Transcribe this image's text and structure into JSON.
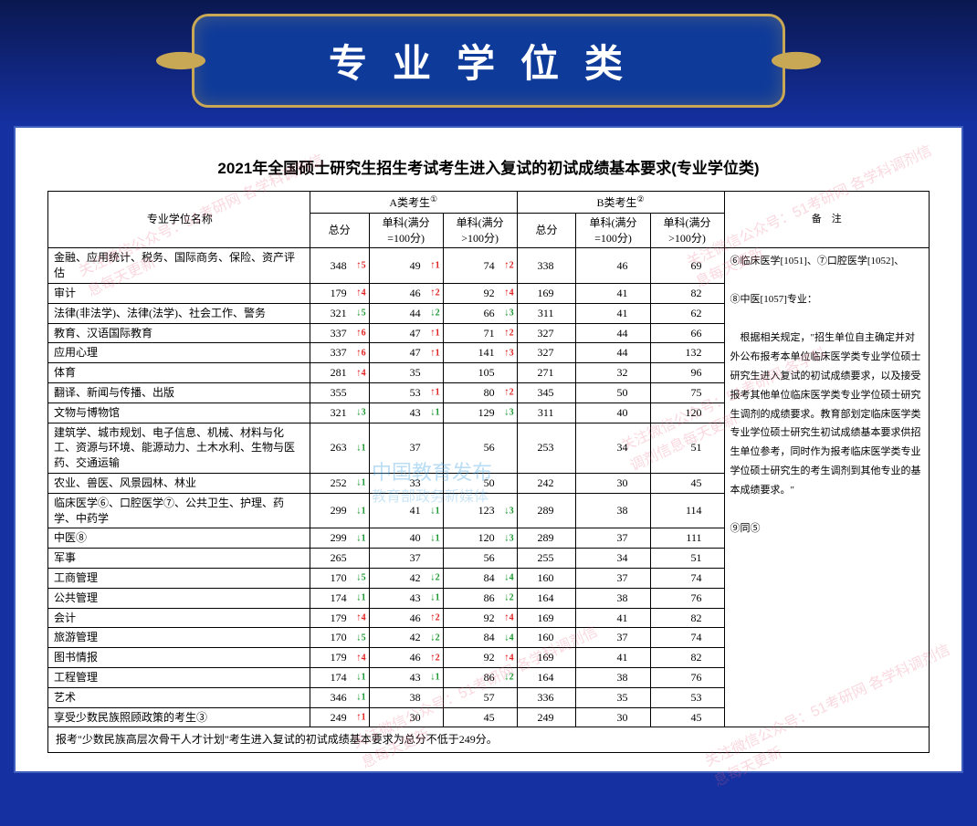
{
  "banner": {
    "title": "专业学位类"
  },
  "table_title": "2021年全国硕士研究生招生考试考生进入复试的初试成绩基本要求(专业学位类)",
  "headers": {
    "name": "专业学位名称",
    "groupA": "A类考生",
    "groupA_sup": "①",
    "groupB": "B类考生",
    "groupB_sup": "②",
    "total": "总分",
    "sub100": "单科(满分=100分)",
    "subgt100": "单科(满分>100分)",
    "note": "备　注"
  },
  "rows": [
    {
      "name": "金融、应用统计、税务、国际商务、保险、资产评估",
      "a": [
        348,
        49,
        74
      ],
      "ad": [
        "+5",
        "+1",
        "+2"
      ],
      "b": [
        338,
        46,
        69
      ],
      "bd": [
        "",
        "",
        ""
      ]
    },
    {
      "name": "审计",
      "a": [
        179,
        46,
        92
      ],
      "ad": [
        "+4",
        "+2",
        "+4"
      ],
      "b": [
        169,
        41,
        82
      ],
      "bd": [
        "",
        "",
        ""
      ]
    },
    {
      "name": "法律(非法学)、法律(法学)、社会工作、警务",
      "a": [
        321,
        44,
        66
      ],
      "ad": [
        "-5",
        "-2",
        "-3"
      ],
      "b": [
        311,
        41,
        62
      ],
      "bd": [
        "",
        "",
        ""
      ]
    },
    {
      "name": "教育、汉语国际教育",
      "a": [
        337,
        47,
        71
      ],
      "ad": [
        "+6",
        "+1",
        "+2"
      ],
      "b": [
        327,
        44,
        66
      ],
      "bd": [
        "",
        "",
        ""
      ]
    },
    {
      "name": "应用心理",
      "a": [
        337,
        47,
        141
      ],
      "ad": [
        "+6",
        "+1",
        "+3"
      ],
      "b": [
        327,
        44,
        132
      ],
      "bd": [
        "",
        "",
        ""
      ]
    },
    {
      "name": "体育",
      "a": [
        281,
        35,
        105
      ],
      "ad": [
        "+4",
        "",
        ""
      ],
      "b": [
        271,
        32,
        96
      ],
      "bd": [
        "",
        "",
        ""
      ]
    },
    {
      "name": "翻译、新闻与传播、出版",
      "a": [
        355,
        53,
        80
      ],
      "ad": [
        "",
        "+1",
        "+2"
      ],
      "b": [
        345,
        50,
        75
      ],
      "bd": [
        "",
        "",
        ""
      ]
    },
    {
      "name": "文物与博物馆",
      "a": [
        321,
        43,
        129
      ],
      "ad": [
        "-3",
        "-1",
        "-3"
      ],
      "b": [
        311,
        40,
        120
      ],
      "bd": [
        "",
        "",
        ""
      ]
    },
    {
      "name": "建筑学、城市规划、电子信息、机械、材料与化工、资源与环境、能源动力、土木水利、生物与医药、交通运输",
      "a": [
        263,
        37,
        56
      ],
      "ad": [
        "-1",
        "",
        ""
      ],
      "b": [
        253,
        34,
        51
      ],
      "bd": [
        "",
        "",
        ""
      ]
    },
    {
      "name": "农业、兽医、风景园林、林业",
      "a": [
        252,
        33,
        50
      ],
      "ad": [
        "-1",
        "",
        ""
      ],
      "b": [
        242,
        30,
        45
      ],
      "bd": [
        "",
        "",
        ""
      ]
    },
    {
      "name": "临床医学⑥、口腔医学⑦、公共卫生、护理、药学、中药学",
      "a": [
        299,
        41,
        123
      ],
      "ad": [
        "-1",
        "-1",
        "-3"
      ],
      "b": [
        289,
        38,
        114
      ],
      "bd": [
        "",
        "",
        ""
      ]
    },
    {
      "name": "中医⑧",
      "a": [
        299,
        40,
        120
      ],
      "ad": [
        "-1",
        "-1",
        "-3"
      ],
      "b": [
        289,
        37,
        111
      ],
      "bd": [
        "",
        "",
        ""
      ]
    },
    {
      "name": "军事",
      "a": [
        265,
        37,
        56
      ],
      "ad": [
        "",
        "",
        ""
      ],
      "b": [
        255,
        34,
        51
      ],
      "bd": [
        "",
        "",
        ""
      ]
    },
    {
      "name": "工商管理",
      "a": [
        170,
        42,
        84
      ],
      "ad": [
        "-5",
        "-2",
        "-4"
      ],
      "b": [
        160,
        37,
        74
      ],
      "bd": [
        "",
        "",
        ""
      ]
    },
    {
      "name": "公共管理",
      "a": [
        174,
        43,
        86
      ],
      "ad": [
        "-1",
        "-1",
        "-2"
      ],
      "b": [
        164,
        38,
        76
      ],
      "bd": [
        "",
        "",
        ""
      ]
    },
    {
      "name": "会计",
      "a": [
        179,
        46,
        92
      ],
      "ad": [
        "+4",
        "+2",
        "+4"
      ],
      "b": [
        169,
        41,
        82
      ],
      "bd": [
        "",
        "",
        ""
      ]
    },
    {
      "name": "旅游管理",
      "a": [
        170,
        42,
        84
      ],
      "ad": [
        "-5",
        "-2",
        "-4"
      ],
      "b": [
        160,
        37,
        74
      ],
      "bd": [
        "",
        "",
        ""
      ]
    },
    {
      "name": "图书情报",
      "a": [
        179,
        46,
        92
      ],
      "ad": [
        "+4",
        "+2",
        "+4"
      ],
      "b": [
        169,
        41,
        82
      ],
      "bd": [
        "",
        "",
        ""
      ]
    },
    {
      "name": "工程管理",
      "a": [
        174,
        43,
        86
      ],
      "ad": [
        "-1",
        "-1",
        "-2"
      ],
      "b": [
        164,
        38,
        76
      ],
      "bd": [
        "",
        "",
        ""
      ]
    },
    {
      "name": "艺术",
      "a": [
        346,
        38,
        57
      ],
      "ad": [
        "-1",
        "",
        ""
      ],
      "b": [
        336,
        35,
        53
      ],
      "bd": [
        "",
        "",
        ""
      ]
    },
    {
      "name": "享受少数民族照顾政策的考生③",
      "a": [
        249,
        30,
        45
      ],
      "ad": [
        "+1",
        "",
        ""
      ],
      "b": [
        249,
        30,
        45
      ],
      "bd": [
        "",
        "",
        ""
      ]
    }
  ],
  "note_text": "⑥临床医学[1051]、⑦口腔医学[1052]、\n\n⑧中医[1057]专业：\n\n　根据相关规定，\"招生单位自主确定并对外公布报考本单位临床医学类专业学位硕士研究生进入复试的初试成绩要求，以及接受报考其他单位临床医学类专业学位硕士研究生调剂的成绩要求。教育部划定临床医学类专业学位硕士研究生初试成绩基本要求供招生单位参考，同时作为报考临床医学类专业学位硕士研究生的考生调剂到其他专业的基本成绩要求。\"\n\n⑨同⑤",
  "footnote": "报考\"少数民族高层次骨干人才计划\"考生进入复试的初试成绩基本要求为总分不低于249分。",
  "watermarks": {
    "wm_red": "关注微信公众号：51考研网\n各学科调剂信息每天更新",
    "wm_blue1": "中国教育发布",
    "wm_blue2": "教育部政务新媒体"
  },
  "colors": {
    "bg_top": "#0a1850",
    "bg_main": "#1530a0",
    "banner_bg": "#0e3a9a",
    "banner_border": "#c9a855",
    "up": "#e02020",
    "down": "#1a9830",
    "border": "#000000",
    "paper": "#ffffff"
  }
}
